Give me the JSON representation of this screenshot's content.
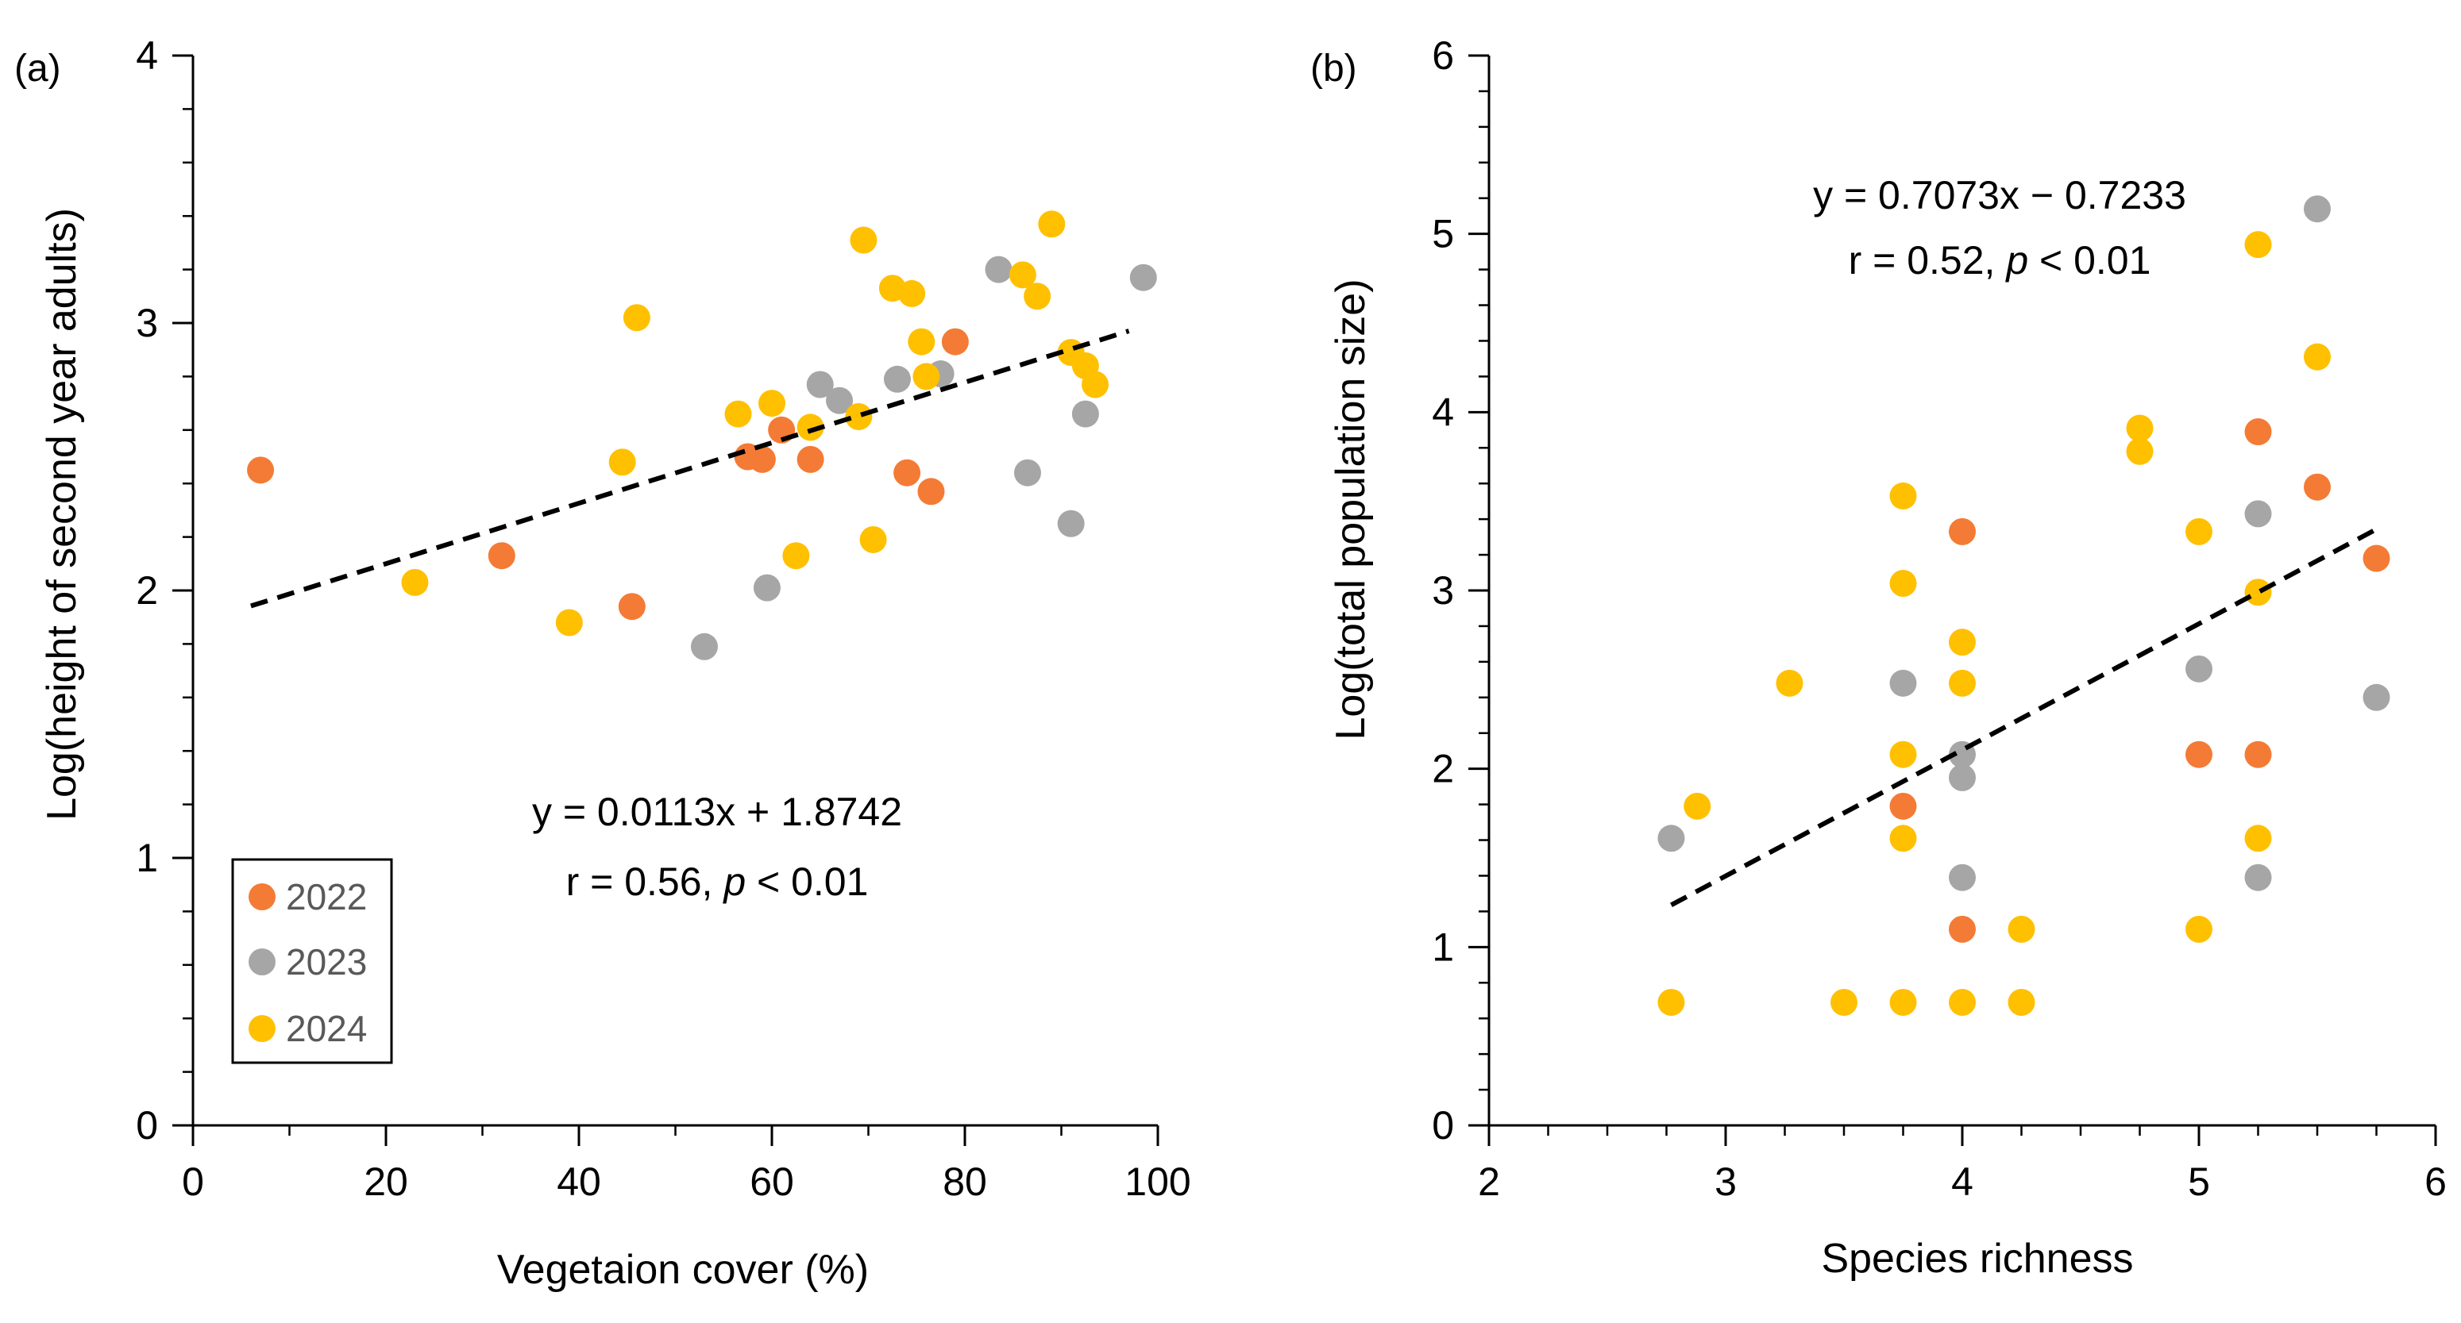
{
  "chart_data": [
    {
      "type": "scatter",
      "panel_label": "(a)",
      "xlabel": "Vegetaion cover (%)",
      "ylabel": "Log(height of second year adults)",
      "xlim": [
        0,
        100
      ],
      "ylim": [
        0,
        4
      ],
      "x_ticks": [
        0,
        20,
        40,
        60,
        80,
        100
      ],
      "y_ticks": [
        0,
        1,
        2,
        3,
        4
      ],
      "grid": false,
      "trendline": {
        "slope": 0.0113,
        "intercept": 1.8742,
        "x_range": [
          6,
          97
        ],
        "style": "dashed"
      },
      "equation": "y = 0.0113x + 1.8742",
      "stats_prefix": "r = 0.56, ",
      "stats_p": "p",
      "stats_suffix": " < 0.01",
      "legend": {
        "position": "bottom-left",
        "entries": [
          {
            "name": "2022",
            "color": "#F47B35"
          },
          {
            "name": "2023",
            "color": "#A6A6A6"
          },
          {
            "name": "2024",
            "color": "#FFC000"
          }
        ]
      },
      "series": [
        {
          "name": "2022",
          "color": "#F47B35",
          "points": [
            [
              7,
              2.45
            ],
            [
              32,
              2.13
            ],
            [
              45.5,
              1.94
            ],
            [
              57.5,
              2.5
            ],
            [
              59,
              2.49
            ],
            [
              61,
              2.6
            ],
            [
              64,
              2.49
            ],
            [
              74,
              2.44
            ],
            [
              76.5,
              2.37
            ],
            [
              79,
              2.93
            ]
          ]
        },
        {
          "name": "2023",
          "color": "#A6A6A6",
          "points": [
            [
              53,
              1.79
            ],
            [
              59.5,
              2.01
            ],
            [
              65,
              2.77
            ],
            [
              67,
              2.71
            ],
            [
              73,
              2.79
            ],
            [
              77.5,
              2.81
            ],
            [
              83.5,
              3.2
            ],
            [
              86.5,
              2.44
            ],
            [
              91,
              2.25
            ],
            [
              92.5,
              2.66
            ],
            [
              98.5,
              3.17
            ]
          ]
        },
        {
          "name": "2024",
          "color": "#FFC000",
          "points": [
            [
              23,
              2.03
            ],
            [
              39,
              1.88
            ],
            [
              44.5,
              2.48
            ],
            [
              46,
              3.02
            ],
            [
              56.5,
              2.66
            ],
            [
              60,
              2.7
            ],
            [
              62.5,
              2.13
            ],
            [
              64,
              2.61
            ],
            [
              69,
              2.65
            ],
            [
              69.5,
              3.31
            ],
            [
              70.5,
              2.19
            ],
            [
              72.5,
              3.13
            ],
            [
              74.5,
              3.11
            ],
            [
              75.5,
              2.93
            ],
            [
              76,
              2.8
            ],
            [
              86,
              3.18
            ],
            [
              87.5,
              3.1
            ],
            [
              89,
              3.37
            ],
            [
              91,
              2.89
            ],
            [
              92.5,
              2.84
            ],
            [
              93.5,
              2.77
            ]
          ]
        }
      ]
    },
    {
      "type": "scatter",
      "panel_label": "(b)",
      "xlabel": "Species richness",
      "ylabel": "Log(total population size)",
      "xlim": [
        2,
        6
      ],
      "ylim": [
        0,
        6
      ],
      "x_ticks": [
        2,
        3,
        4,
        5,
        6
      ],
      "y_ticks": [
        0,
        1,
        2,
        3,
        4,
        5,
        6
      ],
      "grid": false,
      "trendline": {
        "slope": 0.7073,
        "intercept": -0.7233,
        "x_range": [
          2.77,
          5.75
        ],
        "style": "dashed"
      },
      "equation": "y = 0.7073x − 0.7233",
      "stats_prefix": "r = 0.52, ",
      "stats_p": "p",
      "stats_suffix": " < 0.01",
      "series": [
        {
          "name": "2022",
          "color": "#F47B35",
          "points": [
            [
              3.75,
              1.79
            ],
            [
              4,
              3.33
            ],
            [
              4,
              1.1
            ],
            [
              5,
              2.08
            ],
            [
              5.25,
              3.89
            ],
            [
              5.25,
              2.08
            ],
            [
              5.5,
              3.58
            ],
            [
              5.75,
              3.18
            ]
          ]
        },
        {
          "name": "2023",
          "color": "#A6A6A6",
          "points": [
            [
              2.77,
              1.61
            ],
            [
              3.75,
              2.48
            ],
            [
              4,
              2.08
            ],
            [
              4,
              1.95
            ],
            [
              4,
              1.39
            ],
            [
              5,
              2.56
            ],
            [
              5.25,
              3.43
            ],
            [
              5.25,
              1.39
            ],
            [
              5.5,
              5.14
            ],
            [
              5.75,
              2.4
            ]
          ]
        },
        {
          "name": "2024",
          "color": "#FFC000",
          "points": [
            [
              2.77,
              0.69
            ],
            [
              2.88,
              1.79
            ],
            [
              3.27,
              2.48
            ],
            [
              3.5,
              0.69
            ],
            [
              3.75,
              3.53
            ],
            [
              3.75,
              3.04
            ],
            [
              3.75,
              2.08
            ],
            [
              3.75,
              1.61
            ],
            [
              3.75,
              0.69
            ],
            [
              4,
              2.71
            ],
            [
              4,
              2.48
            ],
            [
              4,
              0.69
            ],
            [
              4.25,
              1.1
            ],
            [
              4.25,
              0.69
            ],
            [
              4.75,
              3.91
            ],
            [
              4.75,
              3.78
            ],
            [
              5,
              3.33
            ],
            [
              5,
              1.1
            ],
            [
              5.25,
              4.94
            ],
            [
              5.25,
              2.99
            ],
            [
              5.25,
              1.61
            ],
            [
              5.5,
              4.31
            ]
          ]
        }
      ]
    }
  ]
}
